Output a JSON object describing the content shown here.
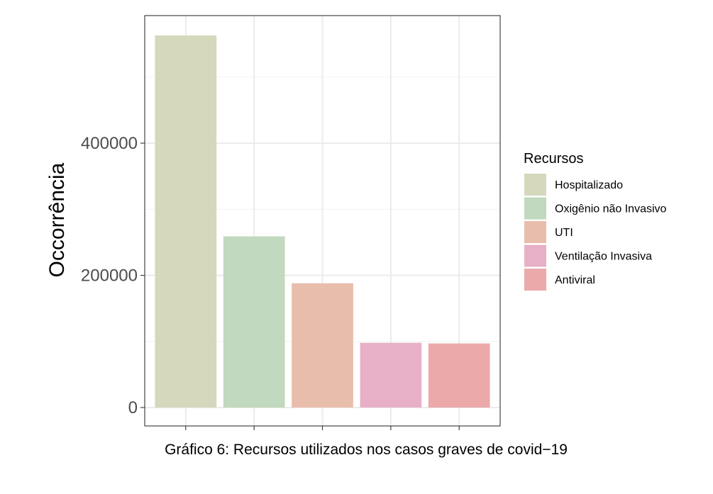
{
  "chart_data": {
    "type": "bar",
    "categories": [
      "Hospitalizado",
      "Oxigênio não Invasivo",
      "UTI",
      "Ventilação Invasiva",
      "Antiviral"
    ],
    "values": [
      563000,
      259000,
      188000,
      98000,
      97000
    ],
    "colors": [
      "#d5d8bd",
      "#c1d9be",
      "#e9bdab",
      "#e7b0c6",
      "#eba9aa"
    ],
    "title": "",
    "xlabel": "",
    "ylabel": "Occorrência",
    "ylim": [
      0,
      600000
    ],
    "yticks": [
      0,
      200000,
      400000
    ],
    "ytick_labels": [
      "0",
      "200000",
      "400000"
    ],
    "minor_yticks": [
      100000,
      300000,
      500000
    ],
    "grid": true,
    "legend": {
      "title": "Recursos",
      "placement": "right",
      "entries": [
        "Hospitalizado",
        "Oxigênio não Invasivo",
        "UTI",
        "Ventilação Invasiva",
        "Antiviral"
      ]
    },
    "caption": "Gráfico 6: Recursos utilizados nos casos graves de covid−19"
  }
}
